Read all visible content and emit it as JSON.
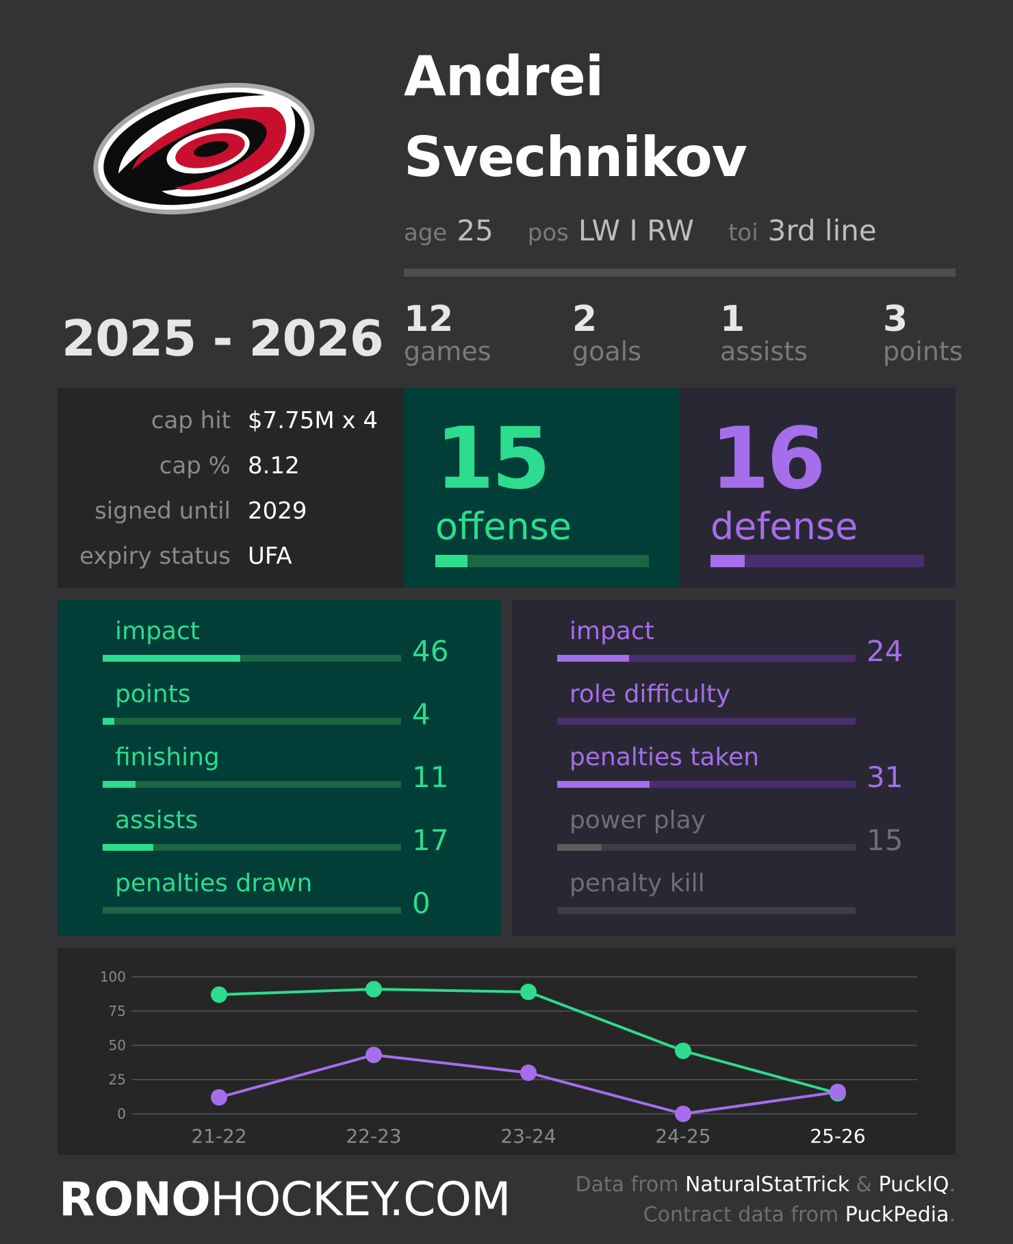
{
  "player": {
    "first_name": "Andrei",
    "last_name": "Svechnikov",
    "age_label": "age",
    "age": "25",
    "pos_label": "pos",
    "pos": "LW I RW",
    "toi_label": "toi",
    "toi": "3rd line"
  },
  "season": "2025 - 2026",
  "stats": [
    {
      "value": "12",
      "label": "games"
    },
    {
      "value": "2",
      "label": "goals"
    },
    {
      "value": "1",
      "label": "assists"
    },
    {
      "value": "3",
      "label": "points"
    }
  ],
  "contract": [
    {
      "label": "cap hit",
      "value": "$7.75M x 4"
    },
    {
      "label": "cap %",
      "value": "8.12"
    },
    {
      "label": "signed until",
      "value": "2029"
    },
    {
      "label": "expiry status",
      "value": "UFA"
    }
  ],
  "offense": {
    "score": "15",
    "label": "offense",
    "fraction": 0.15,
    "metrics": [
      {
        "label": "impact",
        "value": "46",
        "fraction": 0.46
      },
      {
        "label": "points",
        "value": "4",
        "fraction": 0.04
      },
      {
        "label": "finishing",
        "value": "11",
        "fraction": 0.11
      },
      {
        "label": "assists",
        "value": "17",
        "fraction": 0.17
      },
      {
        "label": "penalties drawn",
        "value": "0",
        "fraction": 0.0
      }
    ]
  },
  "defense": {
    "score": "16",
    "label": "defense",
    "fraction": 0.16,
    "metrics": [
      {
        "label": "impact",
        "value": "24",
        "fraction": 0.24,
        "muted": false
      },
      {
        "label": "role difficulty",
        "value": "",
        "fraction": 0.0,
        "muted": false
      },
      {
        "label": "penalties taken",
        "value": "31",
        "fraction": 0.31,
        "muted": false
      },
      {
        "label": "power play",
        "value": "15",
        "fraction": 0.15,
        "muted": true
      },
      {
        "label": "penalty kill",
        "value": "",
        "fraction": 0.0,
        "muted": true
      }
    ]
  },
  "colors": {
    "offense_accent": "#2ddc8e",
    "offense_track": "#1a6645",
    "offense_bg": "#003e37",
    "defense_accent": "#a56eea",
    "defense_track": "#4a2f70",
    "defense_bg": "#2a2734",
    "muted_text": "#6f6f72",
    "muted_fill": "#5c5c5e",
    "muted_track": "#3e3e44"
  },
  "chart_data": {
    "type": "line",
    "categories": [
      "21-22",
      "22-23",
      "23-24",
      "24-25",
      "25-26"
    ],
    "highlight_category": "25-26",
    "series": [
      {
        "values": [
          87,
          91,
          89,
          46,
          15
        ],
        "color": "#2ddc8e"
      },
      {
        "values": [
          12,
          43,
          30,
          0,
          16
        ],
        "color": "#a56eea"
      }
    ],
    "yticks": [
      100,
      75,
      50,
      25,
      0
    ],
    "ylim": [
      0,
      100
    ],
    "grid": true
  },
  "footer": {
    "brand_bold": "RONO",
    "brand_light": "HOCKEY.COM",
    "credit1_prefix": "Data from ",
    "credit1_src1": "NaturalStatTrick",
    "credit1_amp": " & ",
    "credit1_src2": "PuckIQ",
    "credit1_end": ".",
    "credit2_prefix": "Contract data from ",
    "credit2_src": "PuckPedia",
    "credit2_end": "."
  }
}
